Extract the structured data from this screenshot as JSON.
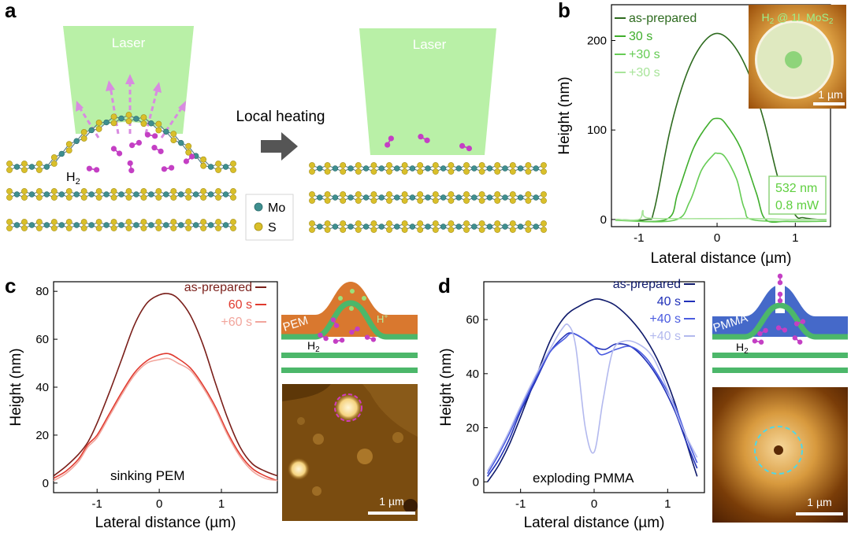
{
  "panel_a": {
    "letter": "a",
    "laser_label_left": "Laser",
    "laser_label_right": "Laser",
    "arrow_label": "Local heating",
    "h2_main": "H",
    "h2_sub": "2",
    "legend_mo": "Mo",
    "legend_s": "S",
    "colors": {
      "laser": "#b9f0a7",
      "mo": "#3f8f8f",
      "s": "#d9bf2a",
      "h2": "#c43fc4",
      "bond": "#5b7f8a"
    }
  },
  "panel_b": {
    "letter": "b",
    "inset_title_main": "H",
    "inset_title_sub": "2",
    "inset_title_rest": " @ 1L MoS",
    "inset_title_sub2": "2",
    "inset_scale": "1 µm",
    "laser_wavelength": "532 nm",
    "laser_power": "0.8 mW"
  },
  "panel_c": {
    "letter": "c",
    "annotation": "sinking PEM",
    "schematic_layer": "PEM",
    "schematic_proton": "H",
    "schematic_proton_sup": "+",
    "schematic_h2_main": "H",
    "schematic_h2_sub": "2",
    "afm_scale": "1 µm"
  },
  "panel_d": {
    "letter": "d",
    "annotation": "exploding PMMA",
    "schematic_layer": "PMMA",
    "schematic_h2_main": "H",
    "schematic_h2_sub": "2",
    "afm_scale": "1 µm"
  },
  "chart_data": [
    {
      "id": "b",
      "type": "line",
      "title": "",
      "xlabel": "Lateral distance (µm)",
      "ylabel": "Height (nm)",
      "xlim": [
        -1.35,
        1.45
      ],
      "ylim": [
        -8,
        240
      ],
      "xticks": [
        -1,
        0,
        1
      ],
      "xtick_labels": [
        "-1",
        "0",
        "1"
      ],
      "yticks": [
        0,
        100,
        200
      ],
      "ytick_labels": [
        "0",
        "100",
        "200"
      ],
      "series": [
        {
          "name": "as-prepared",
          "color": "#2e6b1f",
          "x": [
            -1.3,
            -0.9,
            -0.8,
            -0.6,
            -0.4,
            -0.2,
            0,
            0.2,
            0.4,
            0.6,
            0.8,
            1.0,
            1.1,
            1.3,
            1.4
          ],
          "y": [
            0,
            0,
            12,
            100,
            160,
            195,
            208,
            196,
            164,
            110,
            40,
            5,
            2,
            0,
            0
          ]
        },
        {
          "name": "30 s",
          "color": "#3fae2c",
          "x": [
            -1.3,
            -0.65,
            -0.5,
            -0.3,
            -0.1,
            0,
            0.1,
            0.3,
            0.5,
            0.62,
            0.9,
            1.4
          ],
          "y": [
            0,
            0,
            30,
            80,
            108,
            113,
            108,
            80,
            30,
            0,
            -2,
            -2
          ]
        },
        {
          "name": "+30 s",
          "color": "#66cc55",
          "x": [
            -1.3,
            -0.55,
            -0.35,
            -0.2,
            -0.05,
            0,
            0.1,
            0.25,
            0.35,
            0.5,
            1.4
          ],
          "y": [
            -1,
            -1,
            20,
            55,
            72,
            74,
            70,
            45,
            12,
            -1,
            -2
          ]
        },
        {
          "name": "+30 s",
          "color": "#a8e49a",
          "x": [
            -1.3,
            -1.0,
            -0.95,
            -0.9,
            -0.5,
            0,
            0.5,
            1.0,
            1.4
          ],
          "y": [
            0,
            0,
            10,
            2,
            1,
            1,
            1,
            0,
            0
          ]
        }
      ]
    },
    {
      "id": "c",
      "type": "line",
      "title": "",
      "xlabel": "Lateral distance (µm)",
      "ylabel": "Height (nm)",
      "xlim": [
        -1.7,
        1.9
      ],
      "ylim": [
        -4,
        84
      ],
      "xticks": [
        -1,
        0,
        1
      ],
      "xtick_labels": [
        "-1",
        "0",
        "1"
      ],
      "yticks": [
        0,
        20,
        40,
        60,
        80
      ],
      "ytick_labels": [
        "0",
        "20",
        "40",
        "60",
        "80"
      ],
      "series": [
        {
          "name": "as-prepared",
          "color": "#7a1f1a",
          "x": [
            -1.7,
            -1.5,
            -1.3,
            -1.15,
            -1.0,
            -0.8,
            -0.6,
            -0.4,
            -0.2,
            0,
            0.15,
            0.3,
            0.5,
            0.7,
            0.9,
            1.1,
            1.3,
            1.5,
            1.7,
            1.9
          ],
          "y": [
            3,
            7,
            12,
            17,
            25,
            38,
            52,
            66,
            75,
            78.5,
            79,
            77,
            70,
            58,
            42,
            27,
            15,
            8,
            5,
            3
          ]
        },
        {
          "name": "60 s",
          "color": "#e03a2f",
          "x": [
            -1.7,
            -1.5,
            -1.3,
            -1.15,
            -1.0,
            -0.8,
            -0.6,
            -0.4,
            -0.2,
            0,
            0.15,
            0.3,
            0.5,
            0.7,
            0.9,
            1.1,
            1.3,
            1.5,
            1.7,
            1.9
          ],
          "y": [
            2,
            5,
            10,
            16,
            20,
            29,
            38,
            46,
            51,
            53.5,
            54,
            52,
            48,
            41,
            32,
            21,
            12,
            6,
            3,
            1
          ]
        },
        {
          "name": "+60 s",
          "color": "#f2a59c",
          "x": [
            -1.7,
            -1.5,
            -1.3,
            -1.15,
            -1.0,
            -0.8,
            -0.6,
            -0.4,
            -0.2,
            0,
            0.15,
            0.3,
            0.5,
            0.7,
            0.9,
            1.1,
            1.3,
            1.5,
            1.7,
            1.9
          ],
          "y": [
            1,
            4,
            9,
            15,
            19,
            28,
            37,
            45,
            50,
            51.5,
            52,
            50,
            47,
            40,
            31,
            20,
            11,
            5,
            2,
            1
          ]
        }
      ]
    },
    {
      "id": "d",
      "type": "line",
      "title": "",
      "xlabel": "Lateral distance (µm)",
      "ylabel": "Height (nm)",
      "xlim": [
        -1.5,
        1.5
      ],
      "ylim": [
        -4,
        74
      ],
      "xticks": [
        -1,
        0,
        1
      ],
      "xtick_labels": [
        "-1",
        "0",
        "1"
      ],
      "yticks": [
        0,
        20,
        40,
        60
      ],
      "ytick_labels": [
        "0",
        "20",
        "40",
        "60"
      ],
      "series": [
        {
          "name": "as-prepared",
          "color": "#0f1a6b",
          "x": [
            -1.45,
            -1.3,
            -1.15,
            -1.0,
            -0.8,
            -0.6,
            -0.4,
            -0.2,
            0,
            0.15,
            0.3,
            0.5,
            0.7,
            0.9,
            1.1,
            1.25,
            1.4
          ],
          "y": [
            0,
            6,
            14,
            24,
            38,
            52,
            61,
            65,
            67.5,
            67,
            65,
            60,
            53,
            43,
            29,
            15,
            2
          ]
        },
        {
          "name": "40 s",
          "color": "#2030b8",
          "x": [
            -1.45,
            -1.3,
            -1.15,
            -1.0,
            -0.8,
            -0.6,
            -0.4,
            -0.3,
            -0.15,
            0,
            0.15,
            0.3,
            0.5,
            0.7,
            0.9,
            1.1,
            1.25,
            1.4
          ],
          "y": [
            2,
            8,
            16,
            26,
            37,
            48,
            54,
            55,
            53,
            50,
            49,
            51,
            50,
            45,
            37,
            26,
            15,
            5
          ]
        },
        {
          "name": "+40 s",
          "color": "#4b5ce0",
          "x": [
            -1.45,
            -1.3,
            -1.15,
            -1.0,
            -0.8,
            -0.6,
            -0.4,
            -0.3,
            -0.15,
            0,
            0.1,
            0.3,
            0.5,
            0.7,
            0.9,
            1.1,
            1.25,
            1.4
          ],
          "y": [
            3,
            10,
            18,
            27,
            38,
            48,
            53,
            55,
            53,
            50,
            47,
            49,
            50,
            46,
            38,
            28,
            17,
            7
          ]
        },
        {
          "name": "+40 s",
          "color": "#b3b9ee",
          "x": [
            -1.45,
            -1.3,
            -1.15,
            -1.0,
            -0.8,
            -0.6,
            -0.45,
            -0.35,
            -0.25,
            -0.12,
            0,
            0.12,
            0.25,
            0.4,
            0.6,
            0.8,
            1.0,
            1.2,
            1.4
          ],
          "y": [
            4,
            11,
            19,
            28,
            39,
            49,
            56,
            58,
            50,
            20,
            11,
            30,
            48,
            52,
            51,
            46,
            34,
            20,
            9
          ]
        }
      ]
    }
  ]
}
